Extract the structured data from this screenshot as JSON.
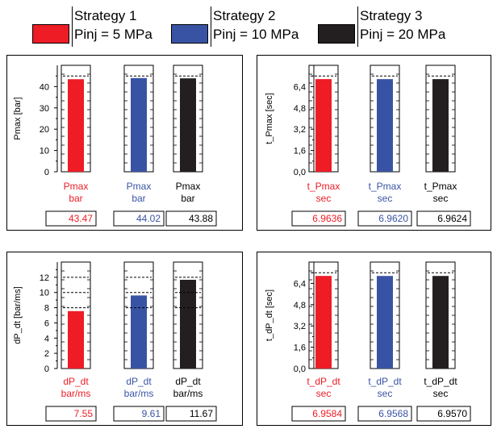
{
  "legend": [
    {
      "name": "Strategy 1",
      "label": "Pinj = 5 MPa",
      "color": "#ee1c25"
    },
    {
      "name": "Strategy 2",
      "label": "Pinj = 10 MPa",
      "color": "#3953a4"
    },
    {
      "name": "Strategy 3",
      "label": "Pinj = 20 MPa",
      "color": "#231f20"
    }
  ],
  "chart_data": [
    {
      "type": "bar",
      "ylabel": "Pmax [bar]",
      "yticks": [
        "0",
        "10",
        "20",
        "30",
        "40"
      ],
      "yticks_values": [
        0,
        10,
        20,
        30,
        40
      ],
      "ylim": [
        0,
        50
      ],
      "reference_line": 45,
      "series": [
        {
          "name": "Strategy 1",
          "category_label": [
            "Pmax",
            "bar"
          ],
          "value": 43.47,
          "display": "43.47",
          "color": "#ee1c25"
        },
        {
          "name": "Strategy 2",
          "category_label": [
            "Pmax",
            "bar"
          ],
          "value": 44.02,
          "display": "44.02",
          "color": "#3953a4"
        },
        {
          "name": "Strategy 3",
          "category_label": [
            "Pmax",
            "bar"
          ],
          "value": 43.88,
          "display": "43.88",
          "color": "#231f20"
        }
      ]
    },
    {
      "type": "bar",
      "ylabel": "t_Pmax [sec]",
      "yticks": [
        "0,0",
        "1,6",
        "3,2",
        "4,8",
        "6,4"
      ],
      "yticks_values": [
        0,
        1.6,
        3.2,
        4.8,
        6.4
      ],
      "ylim": [
        0,
        8.0
      ],
      "reference_line": 7.2,
      "series": [
        {
          "name": "Strategy 1",
          "category_label": [
            "t_Pmax",
            "sec"
          ],
          "value": 6.9636,
          "display": "6.9636",
          "color": "#ee1c25"
        },
        {
          "name": "Strategy 2",
          "category_label": [
            "t_Pmax",
            "sec"
          ],
          "value": 6.962,
          "display": "6.9620",
          "color": "#3953a4"
        },
        {
          "name": "Strategy 3",
          "category_label": [
            "t_Pmax",
            "sec"
          ],
          "value": 6.9624,
          "display": "6.9624",
          "color": "#231f20"
        }
      ]
    },
    {
      "type": "bar",
      "ylabel": "dP_dt [bar/ms]",
      "yticks": [
        "0",
        "2",
        "4",
        "6",
        "8",
        "10",
        "12"
      ],
      "yticks_values": [
        0,
        2,
        4,
        6,
        8,
        10,
        12
      ],
      "ylim": [
        0,
        14
      ],
      "reference_lines": [
        8,
        10,
        12
      ],
      "series": [
        {
          "name": "Strategy 1",
          "category_label": [
            "dP_dt",
            "bar/ms"
          ],
          "value": 7.55,
          "display": "7.55",
          "color": "#ee1c25"
        },
        {
          "name": "Strategy 2",
          "category_label": [
            "dP_dt",
            "bar/ms"
          ],
          "value": 9.61,
          "display": "9.61",
          "color": "#3953a4"
        },
        {
          "name": "Strategy 3",
          "category_label": [
            "dP_dt",
            "bar/ms"
          ],
          "value": 11.67,
          "display": "11.67",
          "color": "#231f20"
        }
      ]
    },
    {
      "type": "bar",
      "ylabel": "t_dP_dt [sec]",
      "yticks": [
        "0,0",
        "1,6",
        "3,2",
        "4,8",
        "6,4"
      ],
      "yticks_values": [
        0,
        1.6,
        3.2,
        4.8,
        6.4
      ],
      "ylim": [
        0,
        8.0
      ],
      "reference_line": 7.2,
      "series": [
        {
          "name": "Strategy 1",
          "category_label": [
            "t_dP_dt",
            "sec"
          ],
          "value": 6.9584,
          "display": "6.9584",
          "color": "#ee1c25"
        },
        {
          "name": "Strategy 2",
          "category_label": [
            "t_dP_dt",
            "sec"
          ],
          "value": 6.9568,
          "display": "6.9568",
          "color": "#3953a4"
        },
        {
          "name": "Strategy 3",
          "category_label": [
            "t_dP_dt",
            "sec"
          ],
          "value": 6.957,
          "display": "6.9570",
          "color": "#231f20"
        }
      ]
    }
  ]
}
